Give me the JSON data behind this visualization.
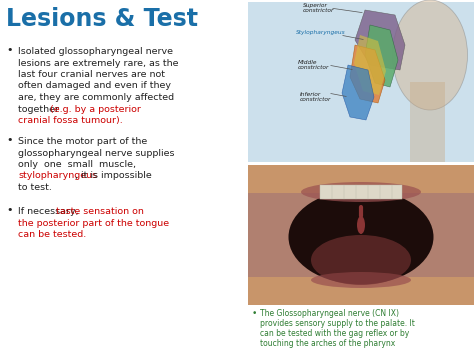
{
  "title": "Lesions & Test",
  "title_color": "#1a6fa8",
  "bg_color": "#ffffff",
  "text_color_black": "#222222",
  "text_color_red": "#cc0000",
  "text_color_green": "#2e7d32",
  "bullet1_line1": "Isolated glossopharyngeal nerve",
  "bullet1_line2": "lesions are extremely rare, as the",
  "bullet1_line3": "last four cranial nerves are not",
  "bullet1_line4": "often damaged and even if they",
  "bullet1_line5": "are, they are commonly affected",
  "bullet1_line6": "together ",
  "bullet1_red": "(e.g. by a posterior",
  "bullet1_red2": "cranial fossa tumour).",
  "bullet2_line1": "Since the motor part of the",
  "bullet2_line2": "glossopharyngeal nerve supplies",
  "bullet2_line3": "only  one  small  muscle,",
  "bullet2_red": "stylopharyngeus",
  "bullet2_after_red": ", it is impossible",
  "bullet2_line4": "to test.",
  "bullet3_normal": "If necessary, ",
  "bullet3_red1": "taste sensation on",
  "bullet3_red2": "the posterior part of the tongue",
  "bullet3_red3": "can be tested.",
  "caption_bullet": "The Glossopharyngeal nerve (CN IX)",
  "caption_line2": "provides sensory supply to the palate. It",
  "caption_line3": "can be tested with the gag reflex or by",
  "caption_line4": "touching the arches of the pharynx",
  "anatomy_label1": "Superior",
  "anatomy_label1b": "constrictor",
  "anatomy_label2": "Stylopharyngeus",
  "anatomy_label3": "Middle",
  "anatomy_label3b": "constrictor",
  "anatomy_label4": "Inferior",
  "anatomy_label4b": "constrictor"
}
